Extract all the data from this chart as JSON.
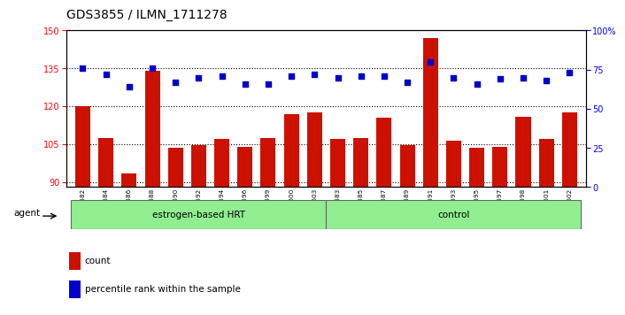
{
  "title": "GDS3855 / ILMN_1711278",
  "samples": [
    "GSM535582",
    "GSM535584",
    "GSM535586",
    "GSM535588",
    "GSM535590",
    "GSM535592",
    "GSM535594",
    "GSM535596",
    "GSM535599",
    "GSM535600",
    "GSM535603",
    "GSM535583",
    "GSM535585",
    "GSM535587",
    "GSM535589",
    "GSM535591",
    "GSM535593",
    "GSM535595",
    "GSM535597",
    "GSM535598",
    "GSM535601",
    "GSM535602"
  ],
  "counts": [
    120.0,
    107.5,
    93.5,
    134.0,
    103.5,
    104.5,
    107.0,
    104.0,
    107.5,
    117.0,
    117.5,
    107.0,
    107.5,
    115.5,
    104.5,
    147.0,
    106.5,
    103.5,
    104.0,
    116.0,
    107.0,
    117.5
  ],
  "percentile_ranks": [
    76,
    72,
    64,
    76,
    67,
    70,
    71,
    66,
    66,
    71,
    72,
    70,
    71,
    71,
    67,
    80,
    70,
    66,
    69,
    70,
    68,
    73
  ],
  "ylim_left": [
    88,
    150
  ],
  "ylim_right": [
    0,
    100
  ],
  "yticks_left": [
    90,
    105,
    120,
    135,
    150
  ],
  "yticks_right": [
    0,
    25,
    50,
    75,
    100
  ],
  "bar_color": "#CC1100",
  "dot_color": "#0000CC",
  "group1_label": "estrogen-based HRT",
  "group2_label": "control",
  "group1_count": 11,
  "group2_count": 11,
  "legend_count_label": "count",
  "legend_pct_label": "percentile rank within the sample",
  "title_fontsize": 10,
  "tick_fontsize": 7,
  "sample_fontsize": 5.2
}
